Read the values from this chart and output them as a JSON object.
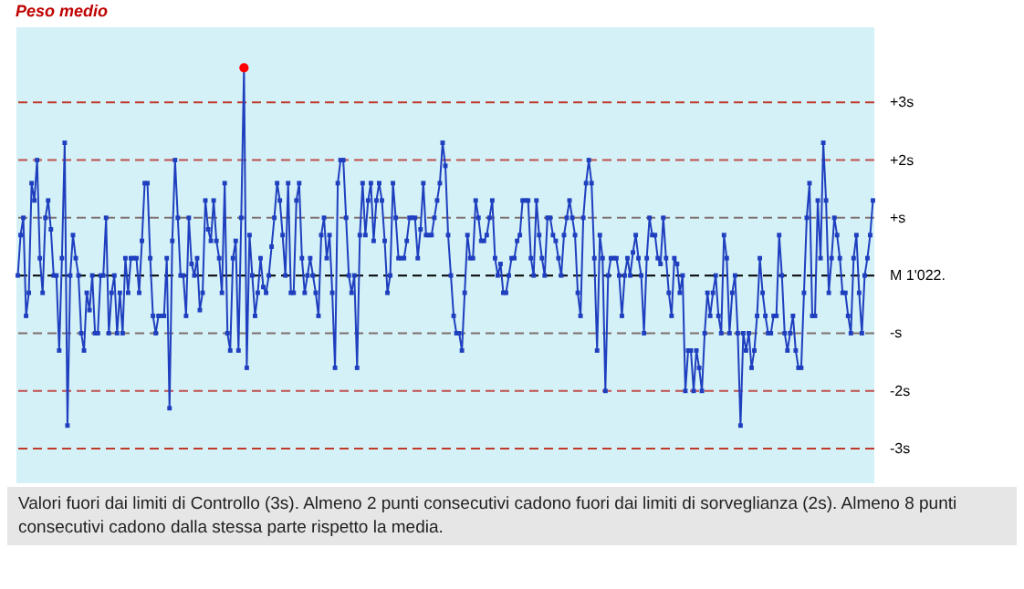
{
  "chart_data": {
    "type": "line",
    "title": "Peso medio",
    "annotations": [
      "Valori fuori dai limiti di Controllo (3s). Almeno 2 punti consecutivi cadono fuori dai limiti di sorveglianza (2s). Almeno 8 punti consecutivi cadono dalla stessa parte rispetto la media."
    ],
    "categories": [
      null,
      null,
      null,
      null,
      null,
      null,
      null,
      null,
      null,
      null,
      null,
      null,
      null,
      null,
      null,
      null,
      null,
      null,
      null,
      null,
      null,
      null,
      null,
      null,
      null,
      null,
      null,
      null,
      null,
      null,
      null,
      null,
      null,
      null,
      null,
      null,
      null,
      null,
      null,
      null,
      null,
      null,
      null,
      null,
      null,
      null,
      null,
      null,
      null,
      null,
      null,
      null,
      null,
      null,
      null,
      null,
      null,
      null,
      null,
      null,
      null,
      null,
      null,
      null,
      null,
      null,
      null,
      null,
      null,
      null,
      null,
      null,
      null,
      null,
      null,
      null,
      null,
      null,
      null,
      null,
      null,
      null,
      null,
      null,
      null,
      null,
      null,
      null,
      null,
      null,
      null,
      null,
      null,
      null,
      null,
      null,
      null,
      null,
      null,
      null,
      null,
      null,
      null,
      null,
      null,
      null,
      null,
      null,
      null,
      null,
      null,
      null,
      null,
      null,
      null,
      null,
      null,
      null,
      null,
      null,
      null,
      null,
      null,
      null,
      null,
      null,
      null,
      null,
      null,
      null,
      null,
      null,
      null,
      null,
      null,
      null,
      null,
      null,
      null,
      null,
      null,
      null,
      null,
      null,
      null,
      null,
      null,
      null,
      null,
      null,
      null,
      null,
      null,
      null,
      null,
      null,
      null,
      null,
      null,
      null,
      null,
      null,
      null,
      null,
      null,
      null,
      null,
      null,
      null,
      null,
      null,
      null,
      null,
      null,
      null,
      null,
      null,
      null,
      null,
      null,
      null,
      null,
      null,
      null,
      null,
      null,
      null,
      null,
      null,
      null,
      null,
      null,
      null,
      null,
      null,
      null,
      null,
      null,
      null,
      null,
      null,
      null,
      null,
      null,
      null,
      null,
      null,
      null,
      null,
      null,
      null,
      null,
      null,
      null,
      null,
      null,
      null,
      null,
      null,
      null,
      null,
      null,
      null,
      null,
      null,
      null,
      null,
      null,
      null,
      null,
      null,
      null,
      null,
      null,
      null,
      null,
      null,
      null,
      null,
      null,
      null,
      null,
      null,
      null,
      null,
      null,
      null,
      null,
      null,
      null,
      null,
      null,
      null,
      null,
      null,
      null,
      null,
      null,
      null,
      null,
      null,
      null,
      null,
      null,
      null,
      null,
      null,
      null,
      null,
      null,
      null,
      null,
      null,
      null,
      null,
      null,
      null,
      null,
      null,
      null,
      null,
      null,
      null,
      null,
      null,
      null,
      null,
      null,
      null,
      null,
      null,
      null,
      null,
      null,
      null,
      null,
      null,
      null,
      null,
      null,
      null,
      null,
      null,
      null,
      null,
      null,
      null,
      null,
      null,
      null,
      null
    ],
    "series": [
      {
        "type": "line",
        "color": "#1f3fbf",
        "values": [
          0,
          0.7,
          1.0,
          -0.7,
          -0.3,
          1.6,
          1.3,
          2.0,
          0.3,
          -0.3,
          1.0,
          1.3,
          0.8,
          0,
          0,
          -1.3,
          0.3,
          2.3,
          -2.6,
          0,
          0.7,
          0.3,
          0,
          -1,
          -1.3,
          -0.3,
          -0.6,
          0,
          -1,
          -1,
          0,
          0,
          1.0,
          -1.0,
          -0.3,
          0,
          -1,
          -0.3,
          -1,
          0.3,
          -0.3,
          0.3,
          0.3,
          0.3,
          -0.3,
          0.6,
          1.6,
          1.6,
          0.3,
          -0.7,
          -1,
          -0.7,
          -0.7,
          -0.7,
          0.3,
          -2.3,
          0.6,
          2.0,
          1.0,
          0,
          0,
          -0.7,
          1.0,
          0.2,
          0,
          0.3,
          -0.6,
          -0.3,
          1.3,
          0.8,
          0.6,
          1.3,
          0.6,
          0.3,
          -0.3,
          1.6,
          -1.0,
          -1.3,
          0.3,
          0.6,
          -1.3,
          1.0,
          3.6,
          -1.6,
          0.7,
          0,
          -0.7,
          -0.3,
          0.3,
          -0.2,
          -0.3,
          0,
          0.5,
          1.0,
          1.6,
          1.3,
          0.7,
          0,
          1.6,
          -0.3,
          -0.3,
          1.3,
          1.6,
          0.3,
          -0.3,
          0,
          0.3,
          0,
          -0.3,
          -0.7,
          0.7,
          1.0,
          0.3,
          0.7,
          -0.3,
          -1.6,
          1.6,
          2.0,
          2.0,
          1.0,
          0,
          -0.3,
          0,
          -1.6,
          0.7,
          1.6,
          0.7,
          1.3,
          1.6,
          0.6,
          1.3,
          1.6,
          1.3,
          0.6,
          -0.3,
          0,
          1.6,
          1.0,
          0.3,
          0.3,
          0.3,
          0.6,
          1.0,
          1.0,
          1.0,
          0.3,
          0.8,
          1.6,
          0.7,
          0.7,
          0.7,
          1.0,
          1.3,
          1.6,
          2.3,
          1.9,
          0.7,
          0,
          -0.7,
          -1.0,
          -1.0,
          -1.3,
          -0.3,
          0.7,
          0.3,
          0.3,
          1.3,
          1.0,
          0.6,
          0.6,
          0.7,
          1.0,
          1.3,
          0.3,
          0,
          0.2,
          -0.3,
          -0.3,
          0,
          0.3,
          0.3,
          0.6,
          0.7,
          1.3,
          1.3,
          1.3,
          0.3,
          0,
          1.3,
          0.7,
          0.3,
          0,
          1.0,
          1.0,
          0.7,
          0.6,
          0.3,
          0,
          0.7,
          1.0,
          1.3,
          1.0,
          0.7,
          -0.3,
          -0.7,
          1.0,
          1.6,
          2.0,
          1.6,
          0.3,
          -1.3,
          0.7,
          0.3,
          -2.0,
          0,
          0.3,
          0.3,
          0.3,
          0,
          -0.7,
          0,
          0.3,
          0,
          0.4,
          0.7,
          0.3,
          0,
          -1.0,
          0.3,
          1.0,
          0.7,
          0.7,
          0.3,
          0.2,
          1.0,
          0.3,
          -0.3,
          -0.7,
          0.3,
          0.2,
          -0.3,
          0,
          -2.0,
          -1.3,
          -1.3,
          -2.0,
          -1.3,
          -1.6,
          -2.0,
          -1.0,
          -0.3,
          -0.7,
          -0.3,
          0,
          -0.7,
          -1.0,
          0.7,
          0.3,
          -1.0,
          -0.3,
          0,
          -1.0,
          -2.6,
          -1.0,
          -1.3,
          -1.0,
          -1.6,
          -1.3,
          -0.7,
          0.3,
          -0.3,
          -0.7,
          -1.0,
          -1.0,
          -0.7,
          -0.7,
          0.7,
          0,
          -1.0,
          -1.3,
          -1.0,
          -0.7,
          -1.3,
          -1.6,
          -1.6,
          -0.3,
          1.0,
          1.6,
          -0.7,
          -0.7,
          1.3,
          0.3,
          2.3,
          1.3,
          -0.3,
          0.3,
          1.0,
          0.7,
          0.3,
          -0.3,
          -0.3,
          -0.7,
          -1.0,
          0.3,
          0.7,
          -0.3,
          -1.0,
          0,
          0.3,
          0.7,
          1.3
        ]
      },
      {
        "type": "line",
        "color": "#ff0000",
        "marker": "circle",
        "values": [
          null,
          null,
          null,
          null,
          null,
          null,
          null,
          null,
          null,
          null,
          null,
          null,
          null,
          null,
          null,
          null,
          null,
          null,
          null,
          null,
          null,
          null,
          null,
          null,
          null,
          null,
          null,
          null,
          null,
          null,
          null,
          null,
          null,
          null,
          null,
          null,
          null,
          null,
          null,
          null,
          null,
          null,
          null,
          null,
          null,
          null,
          null,
          null,
          null,
          null,
          null,
          null,
          null,
          null,
          null,
          null,
          null,
          null,
          null,
          null,
          null,
          null,
          null,
          null,
          null,
          null,
          null,
          null,
          null,
          null,
          null,
          null,
          null,
          null,
          null,
          null,
          null,
          null,
          null,
          null,
          null,
          null,
          3.6,
          null,
          null,
          null,
          null,
          null,
          null,
          null,
          null,
          null,
          null,
          null,
          null,
          null,
          null,
          null,
          null,
          null,
          null,
          null,
          null,
          null,
          null,
          null,
          null,
          null,
          null,
          null,
          null,
          null,
          null,
          null,
          null,
          null,
          null,
          null,
          null,
          null,
          null,
          null,
          null,
          null,
          null,
          null,
          null,
          null,
          null,
          null,
          null,
          null,
          null,
          null,
          null,
          null,
          null,
          null,
          null,
          null,
          null,
          null,
          null,
          null,
          null,
          null,
          null,
          null,
          null,
          null,
          null,
          null,
          null,
          null,
          null,
          null,
          null,
          null,
          null,
          null,
          null,
          null,
          null,
          null,
          null,
          null,
          null,
          null,
          null,
          null,
          null,
          null,
          null,
          null,
          null,
          null,
          null,
          null,
          null,
          null,
          null,
          null,
          null,
          null,
          null,
          null,
          null,
          null,
          null,
          null,
          null,
          null,
          null,
          null,
          null,
          null,
          null,
          null,
          null,
          null,
          null,
          null,
          null,
          null,
          null,
          null,
          null,
          null,
          null,
          null,
          null,
          null,
          null,
          null,
          null,
          null,
          null,
          null,
          null,
          null,
          null,
          null,
          null,
          null,
          null,
          null,
          null,
          null,
          null,
          null,
          null,
          null,
          null,
          null,
          null,
          null,
          null,
          null,
          null,
          null,
          null,
          null,
          null,
          null,
          null,
          null,
          null,
          null,
          null,
          null,
          null,
          null,
          null,
          null,
          null,
          null,
          null,
          null,
          null,
          null,
          null,
          null,
          null,
          null,
          null,
          null,
          null,
          null,
          null,
          null,
          null,
          null,
          null,
          null,
          null,
          null,
          null,
          null,
          null,
          null,
          null,
          null,
          null,
          null,
          null,
          null,
          null,
          null,
          null,
          null,
          null,
          null,
          null,
          null,
          null,
          null,
          null,
          null,
          null,
          null,
          null,
          null,
          null,
          null,
          null,
          null,
          null,
          null,
          null,
          null,
          null
        ]
      }
    ],
    "ylim": [
      -3.6,
      4.3
    ],
    "tick_labels": "y",
    "marker": "square",
    "line_style": "solid",
    "yticks": [
      {
        "value": 3,
        "label": "+3s"
      },
      {
        "value": 2,
        "label": "+2s"
      },
      {
        "value": 1,
        "label": "+s"
      },
      {
        "value": 0,
        "label": "M 1'022."
      },
      {
        "value": -1,
        "label": "-s"
      },
      {
        "value": -2,
        "label": "-2s"
      },
      {
        "value": -3,
        "label": "-3s"
      }
    ],
    "ref_lines": [
      {
        "axis": "y",
        "value": 3,
        "color": "#c0392b",
        "line_style": "dashed"
      },
      {
        "axis": "y",
        "value": 2,
        "color": "#c0504d",
        "line_style": "dashed"
      },
      {
        "axis": "y",
        "value": 1,
        "color": "#7f6f6f",
        "line_style": "dashed"
      },
      {
        "axis": "y",
        "value": 0,
        "color": "#000000",
        "line_style": "dashed"
      },
      {
        "axis": "y",
        "value": -1,
        "color": "#7f6f6f",
        "line_style": "dashed"
      },
      {
        "axis": "y",
        "value": -2,
        "color": "#c0504d",
        "line_style": "dashed"
      },
      {
        "axis": "y",
        "value": -3,
        "color": "#c0392b",
        "line_style": "dashed"
      }
    ]
  }
}
